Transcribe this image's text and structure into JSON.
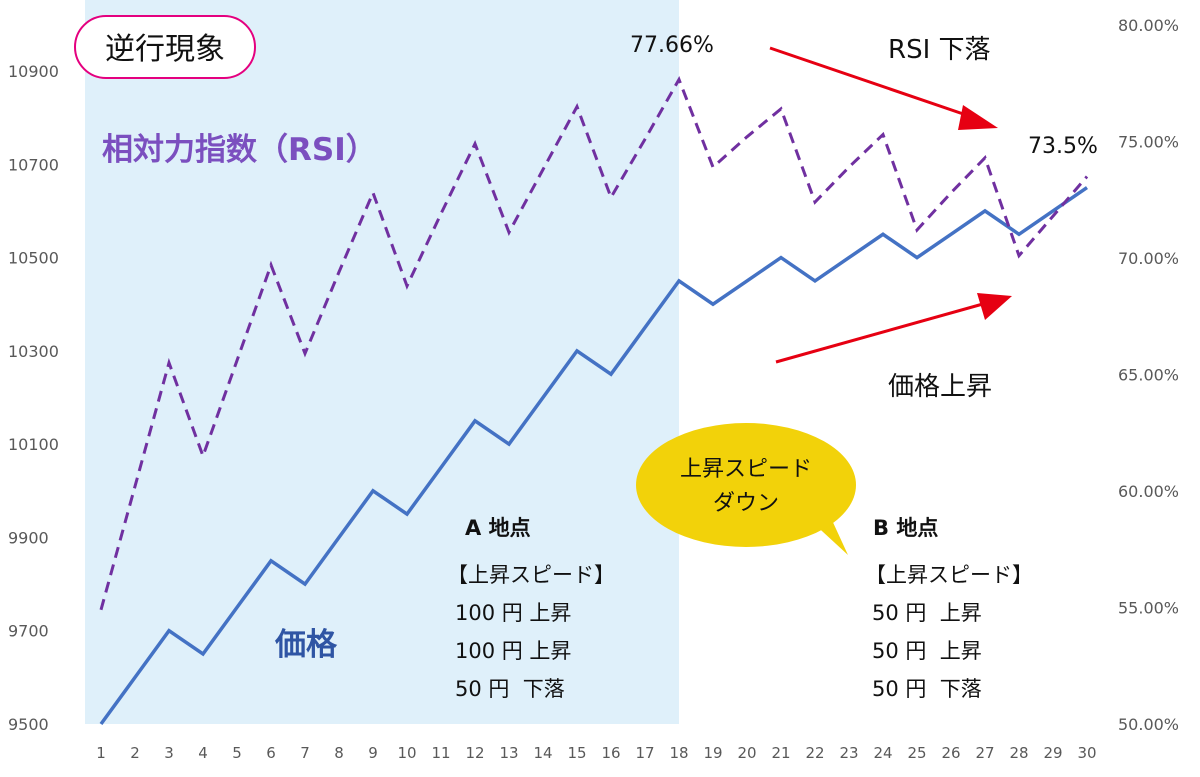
{
  "chart_data": {
    "type": "line",
    "x": [
      1,
      2,
      3,
      4,
      5,
      6,
      7,
      8,
      9,
      10,
      11,
      12,
      13,
      14,
      15,
      16,
      17,
      18,
      19,
      20,
      21,
      22,
      23,
      24,
      25,
      26,
      27,
      28,
      29,
      30
    ],
    "series": [
      {
        "name": "価格",
        "axis": "left",
        "color": "#4472c4",
        "style": "solid",
        "values": [
          9500,
          9600,
          9700,
          9650,
          9750,
          9850,
          9800,
          9900,
          10000,
          9950,
          10050,
          10150,
          10100,
          10200,
          10300,
          10250,
          10350,
          10450,
          10400,
          10450,
          10500,
          10450,
          10500,
          10550,
          10500,
          10550,
          10600,
          10550,
          10600,
          10650
        ]
      },
      {
        "name": "相対力指数（RSI）",
        "axis": "right",
        "color": "#7030a0",
        "style": "dashed",
        "values": [
          54.9,
          60.2,
          65.5,
          61.5,
          65.6,
          69.7,
          65.9,
          69.4,
          72.8,
          68.8,
          71.9,
          74.9,
          71.1,
          73.8,
          76.5,
          72.6,
          75.1,
          77.66,
          73.9,
          75.2,
          76.4,
          72.4,
          73.9,
          75.3,
          71.2,
          72.8,
          74.3,
          70.1,
          71.8,
          73.5
        ]
      }
    ],
    "left_axis": {
      "ylim": [
        9500,
        10900
      ],
      "ticks": [
        "9500",
        "9700",
        "9900",
        "10100",
        "10300",
        "10500",
        "10700",
        "10900"
      ]
    },
    "right_axis": {
      "ylim": [
        50,
        80
      ],
      "ticks": [
        "50.00%",
        "55.00%",
        "60.00%",
        "65.00%",
        "70.00%",
        "75.00%",
        "80.00%"
      ]
    },
    "x_ticks": [
      "1",
      "2",
      "3",
      "4",
      "5",
      "6",
      "7",
      "8",
      "9",
      "10",
      "11",
      "12",
      "13",
      "14",
      "15",
      "16",
      "17",
      "18",
      "19",
      "20",
      "21",
      "22",
      "23",
      "24",
      "25",
      "26",
      "27",
      "28",
      "29",
      "30"
    ],
    "shaded_range": [
      1,
      18
    ],
    "shade_color": "#dff0fa",
    "grid": false,
    "annotations": {
      "title_box": "逆行現象",
      "rsi_label": "相対力指数（RSI）",
      "price_label": "価格",
      "peak_label": "77.66%",
      "end_label": "73.5%",
      "rsi_down": "RSI 下落",
      "price_up": "価格上昇",
      "bubble": [
        "上昇スピード",
        "ダウン"
      ],
      "point_a": {
        "title": "A 地点",
        "lines": [
          "【上昇スピード】",
          "100 円 上昇",
          "100 円 上昇",
          "50 円  下落"
        ]
      },
      "point_b": {
        "title": "B 地点",
        "lines": [
          "【上昇スピード】",
          "50 円  上昇",
          "50 円  上昇",
          "50 円  下落"
        ]
      }
    },
    "colors": {
      "arrow": "#e60012",
      "title_border": "#e4007f",
      "bubble": "#f2d20a"
    }
  }
}
